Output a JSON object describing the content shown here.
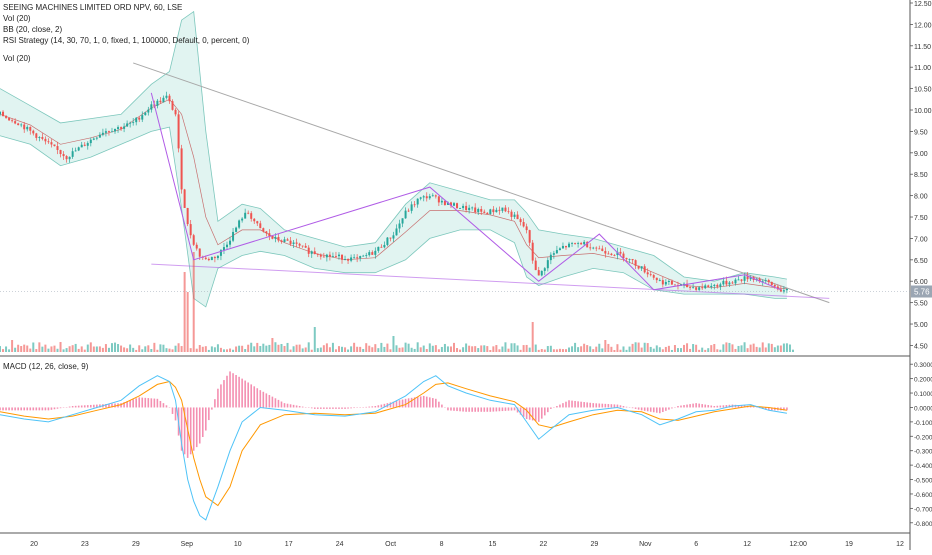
{
  "legend": {
    "title": "SEEING MACHINES LIMITED ORD NPV, 60, LSE",
    "vol_top": "Vol (20)",
    "bb": "BB (20, close, 2)",
    "rsi": "RSI Strategy (14, 30, 70, 1, 0, fixed, 1, 100000, Default, 0, percent, 0)",
    "vol": "Vol (20)",
    "macd": "MACD (12, 26, close, 9)"
  },
  "colors": {
    "up": "#26a69a",
    "down": "#ef5350",
    "bb_fill": "#c8ebe6",
    "bb_line": "#7cc7bc",
    "bb_mid": "#c77070",
    "zigzag": "#b05ce6",
    "trendline": "#a8a8a8",
    "macd_line": "#4fc3f7",
    "signal_line": "#ff9800",
    "hist": "#f48fb1",
    "price_tag": "#9ba6b3"
  },
  "chart_data": [
    {
      "type": "candlestick",
      "title": "SEEING MACHINES LIMITED ORD NPV, 60, LSE",
      "ylim": [
        4.3,
        12.5
      ],
      "y_ticks": [
        12.5,
        12.0,
        11.5,
        11.0,
        10.5,
        10.0,
        9.5,
        9.0,
        8.5,
        8.0,
        7.5,
        7.0,
        6.5,
        6.0,
        5.5,
        5.0,
        4.5
      ],
      "y_tick_labels": [
        "12.50",
        "12.00",
        "11.50",
        "11.00",
        "10.50",
        "10.00",
        "9.50",
        "9.00",
        "8.50",
        "8.00",
        "7.50",
        "7.00",
        "6.50",
        "6.00",
        "5.50",
        "5.00",
        "4.50"
      ],
      "x_labels": [
        "20",
        "23",
        "29",
        "Sep",
        "10",
        "17",
        "24",
        "Oct",
        "8",
        "15",
        "22",
        "29",
        "Nov",
        "6",
        "12",
        "12:00",
        "19",
        "12"
      ],
      "last_price": "5.76",
      "price_path": [
        [
          0,
          9.9
        ],
        [
          6,
          9.7
        ],
        [
          12,
          9.4
        ],
        [
          18,
          9.1
        ],
        [
          22,
          8.9
        ],
        [
          28,
          9.2
        ],
        [
          34,
          9.5
        ],
        [
          40,
          9.6
        ],
        [
          44,
          9.7
        ],
        [
          50,
          10.1
        ],
        [
          55,
          10.3
        ],
        [
          58,
          9.9
        ],
        [
          60,
          8.2
        ],
        [
          62,
          7.3
        ],
        [
          64,
          6.9
        ],
        [
          66,
          6.6
        ],
        [
          68,
          6.5
        ],
        [
          72,
          6.6
        ],
        [
          76,
          7.0
        ],
        [
          80,
          7.5
        ],
        [
          82,
          7.6
        ],
        [
          86,
          7.2
        ],
        [
          90,
          7.0
        ],
        [
          96,
          6.9
        ],
        [
          102,
          6.7
        ],
        [
          108,
          6.6
        ],
        [
          114,
          6.55
        ],
        [
          118,
          6.5
        ],
        [
          124,
          6.7
        ],
        [
          130,
          7.1
        ],
        [
          134,
          7.6
        ],
        [
          138,
          7.9
        ],
        [
          142,
          8.0
        ],
        [
          148,
          7.8
        ],
        [
          154,
          7.7
        ],
        [
          160,
          7.6
        ],
        [
          166,
          7.7
        ],
        [
          170,
          7.5
        ],
        [
          174,
          7.2
        ],
        [
          176,
          6.5
        ],
        [
          178,
          6.1
        ],
        [
          182,
          6.6
        ],
        [
          186,
          6.8
        ],
        [
          192,
          6.9
        ],
        [
          196,
          6.8
        ],
        [
          200,
          6.7
        ],
        [
          206,
          6.6
        ],
        [
          212,
          6.3
        ],
        [
          218,
          6.0
        ],
        [
          224,
          5.9
        ],
        [
          230,
          5.85
        ],
        [
          236,
          5.9
        ],
        [
          242,
          6.0
        ],
        [
          248,
          6.1
        ],
        [
          254,
          5.95
        ],
        [
          258,
          5.8
        ],
        [
          260,
          5.76
        ]
      ],
      "bb_upper": [
        [
          0,
          10.5
        ],
        [
          10,
          10.1
        ],
        [
          20,
          9.7
        ],
        [
          30,
          9.8
        ],
        [
          40,
          9.9
        ],
        [
          50,
          10.6
        ],
        [
          56,
          10.9
        ],
        [
          60,
          12.1
        ],
        [
          64,
          12.3
        ],
        [
          68,
          9.5
        ],
        [
          72,
          7.4
        ],
        [
          80,
          7.8
        ],
        [
          86,
          7.7
        ],
        [
          94,
          7.2
        ],
        [
          104,
          7.0
        ],
        [
          114,
          6.8
        ],
        [
          124,
          6.9
        ],
        [
          134,
          7.8
        ],
        [
          142,
          8.3
        ],
        [
          152,
          8.1
        ],
        [
          162,
          7.9
        ],
        [
          170,
          7.9
        ],
        [
          174,
          7.6
        ],
        [
          178,
          7.2
        ],
        [
          186,
          7.1
        ],
        [
          196,
          7.0
        ],
        [
          206,
          6.8
        ],
        [
          216,
          6.6
        ],
        [
          226,
          6.1
        ],
        [
          236,
          6.0
        ],
        [
          246,
          6.2
        ],
        [
          256,
          6.1
        ],
        [
          260,
          6.05
        ]
      ],
      "bb_lower": [
        [
          0,
          9.4
        ],
        [
          10,
          9.2
        ],
        [
          20,
          8.7
        ],
        [
          30,
          8.9
        ],
        [
          40,
          9.2
        ],
        [
          50,
          9.5
        ],
        [
          56,
          9.6
        ],
        [
          60,
          7.7
        ],
        [
          64,
          5.6
        ],
        [
          68,
          5.4
        ],
        [
          72,
          6.3
        ],
        [
          80,
          6.6
        ],
        [
          86,
          6.7
        ],
        [
          94,
          6.6
        ],
        [
          104,
          6.3
        ],
        [
          114,
          6.2
        ],
        [
          124,
          6.2
        ],
        [
          134,
          6.5
        ],
        [
          142,
          7.0
        ],
        [
          152,
          7.2
        ],
        [
          162,
          7.2
        ],
        [
          170,
          6.9
        ],
        [
          174,
          6.1
        ],
        [
          178,
          5.9
        ],
        [
          186,
          6.1
        ],
        [
          196,
          6.3
        ],
        [
          206,
          6.2
        ],
        [
          216,
          5.8
        ],
        [
          226,
          5.7
        ],
        [
          236,
          5.7
        ],
        [
          246,
          5.7
        ],
        [
          256,
          5.6
        ],
        [
          260,
          5.6
        ]
      ],
      "bb_middle": [
        [
          0,
          9.9
        ],
        [
          10,
          9.65
        ],
        [
          20,
          9.2
        ],
        [
          30,
          9.35
        ],
        [
          40,
          9.55
        ],
        [
          50,
          10.05
        ],
        [
          56,
          10.25
        ],
        [
          60,
          9.9
        ],
        [
          64,
          8.9
        ],
        [
          68,
          7.5
        ],
        [
          72,
          6.85
        ],
        [
          80,
          7.2
        ],
        [
          86,
          7.2
        ],
        [
          94,
          6.9
        ],
        [
          104,
          6.65
        ],
        [
          114,
          6.5
        ],
        [
          124,
          6.55
        ],
        [
          134,
          7.15
        ],
        [
          142,
          7.65
        ],
        [
          152,
          7.65
        ],
        [
          162,
          7.55
        ],
        [
          170,
          7.4
        ],
        [
          174,
          6.85
        ],
        [
          178,
          6.55
        ],
        [
          186,
          6.6
        ],
        [
          196,
          6.65
        ],
        [
          206,
          6.5
        ],
        [
          216,
          6.2
        ],
        [
          226,
          5.9
        ],
        [
          236,
          5.85
        ],
        [
          246,
          5.95
        ],
        [
          256,
          5.85
        ],
        [
          260,
          5.82
        ]
      ],
      "zigzag": [
        [
          50,
          10.4
        ],
        [
          64,
          6.5
        ],
        [
          142,
          8.2
        ],
        [
          178,
          6.0
        ],
        [
          198,
          7.1
        ],
        [
          216,
          5.8
        ],
        [
          246,
          6.15
        ],
        [
          258,
          5.8
        ]
      ],
      "trendline_upper": [
        [
          44,
          11.1
        ],
        [
          274,
          5.5
        ]
      ],
      "trendline_lower": [
        [
          50,
          6.4
        ],
        [
          274,
          5.6
        ]
      ],
      "volume_spikes": [
        [
          61,
          80
        ],
        [
          64,
          100
        ],
        [
          62,
          60
        ],
        [
          176,
          30
        ],
        [
          104,
          25
        ],
        [
          4,
          12
        ],
        [
          20,
          10
        ],
        [
          90,
          14
        ],
        [
          130,
          16
        ],
        [
          200,
          12
        ],
        [
          236,
          8
        ]
      ]
    },
    {
      "type": "macd",
      "title": "MACD (12, 26, close, 9)",
      "ylim": [
        -0.85,
        0.35
      ],
      "y_tick_labels": [
        "0.3000",
        "0.2000",
        "0.1000",
        "0.0000",
        "-0.1000",
        "-0.2000",
        "-0.3000",
        "-0.4000",
        "-0.5000",
        "-0.6000",
        "-0.7000",
        "-0.8000"
      ],
      "y_ticks": [
        0.3,
        0.2,
        0.1,
        0.0,
        -0.1,
        -0.2,
        -0.3,
        -0.4,
        -0.5,
        -0.6,
        -0.7,
        -0.8
      ],
      "macd": [
        [
          0,
          -0.05
        ],
        [
          8,
          -0.08
        ],
        [
          16,
          -0.1
        ],
        [
          24,
          -0.05
        ],
        [
          32,
          0.0
        ],
        [
          40,
          0.05
        ],
        [
          46,
          0.15
        ],
        [
          52,
          0.22
        ],
        [
          56,
          0.18
        ],
        [
          58,
          0.05
        ],
        [
          60,
          -0.25
        ],
        [
          62,
          -0.5
        ],
        [
          64,
          -0.65
        ],
        [
          66,
          -0.75
        ],
        [
          68,
          -0.78
        ],
        [
          72,
          -0.55
        ],
        [
          76,
          -0.3
        ],
        [
          80,
          -0.1
        ],
        [
          86,
          0.0
        ],
        [
          94,
          -0.02
        ],
        [
          104,
          -0.05
        ],
        [
          114,
          -0.06
        ],
        [
          124,
          -0.03
        ],
        [
          134,
          0.08
        ],
        [
          140,
          0.18
        ],
        [
          144,
          0.22
        ],
        [
          148,
          0.15
        ],
        [
          154,
          0.1
        ],
        [
          162,
          0.05
        ],
        [
          170,
          0.02
        ],
        [
          174,
          -0.1
        ],
        [
          178,
          -0.22
        ],
        [
          182,
          -0.15
        ],
        [
          188,
          -0.05
        ],
        [
          196,
          -0.02
        ],
        [
          204,
          0.0
        ],
        [
          212,
          -0.05
        ],
        [
          218,
          -0.12
        ],
        [
          224,
          -0.08
        ],
        [
          230,
          -0.03
        ],
        [
          236,
          -0.02
        ],
        [
          242,
          0.01
        ],
        [
          248,
          0.02
        ],
        [
          254,
          -0.02
        ],
        [
          260,
          -0.04
        ]
      ],
      "signal": [
        [
          0,
          -0.03
        ],
        [
          8,
          -0.06
        ],
        [
          16,
          -0.08
        ],
        [
          24,
          -0.06
        ],
        [
          32,
          -0.02
        ],
        [
          40,
          0.02
        ],
        [
          46,
          0.08
        ],
        [
          52,
          0.16
        ],
        [
          56,
          0.18
        ],
        [
          58,
          0.14
        ],
        [
          60,
          0.05
        ],
        [
          62,
          -0.15
        ],
        [
          64,
          -0.35
        ],
        [
          66,
          -0.5
        ],
        [
          68,
          -0.62
        ],
        [
          72,
          -0.68
        ],
        [
          76,
          -0.55
        ],
        [
          80,
          -0.3
        ],
        [
          86,
          -0.12
        ],
        [
          94,
          -0.05
        ],
        [
          104,
          -0.04
        ],
        [
          114,
          -0.05
        ],
        [
          124,
          -0.04
        ],
        [
          134,
          0.02
        ],
        [
          140,
          0.1
        ],
        [
          144,
          0.16
        ],
        [
          148,
          0.17
        ],
        [
          154,
          0.13
        ],
        [
          162,
          0.08
        ],
        [
          170,
          0.04
        ],
        [
          174,
          -0.02
        ],
        [
          178,
          -0.12
        ],
        [
          182,
          -0.14
        ],
        [
          188,
          -0.1
        ],
        [
          196,
          -0.05
        ],
        [
          204,
          -0.02
        ],
        [
          212,
          -0.03
        ],
        [
          218,
          -0.08
        ],
        [
          224,
          -0.09
        ],
        [
          230,
          -0.06
        ],
        [
          236,
          -0.03
        ],
        [
          242,
          -0.01
        ],
        [
          248,
          0.01
        ],
        [
          254,
          0.0
        ],
        [
          260,
          -0.02
        ]
      ]
    }
  ]
}
